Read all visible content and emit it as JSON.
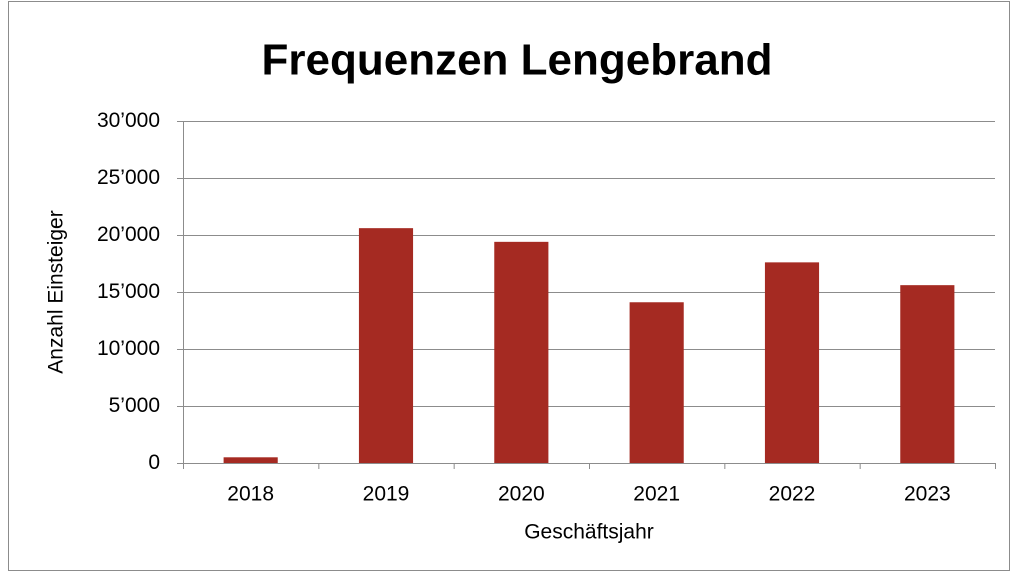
{
  "chart_data": {
    "type": "bar",
    "title": "Frequenzen Lengebrand",
    "x_label": "Geschäftsjahr",
    "y_label": "Anzahl Einsteiger",
    "categories": [
      "2018",
      "2019",
      "2020",
      "2021",
      "2022",
      "2023"
    ],
    "values": [
      500,
      20600,
      19400,
      14100,
      17600,
      15600
    ],
    "color": "#a52a22",
    "ylim": [
      0,
      30000
    ],
    "yticks": [
      0,
      {
        "value": 5000,
        "label": "5’000"
      },
      {
        "value": 10000,
        "label": "10’000"
      },
      {
        "value": 15000,
        "label": "15’000"
      },
      {
        "value": 20000,
        "label": "20’000"
      },
      {
        "value": 25000,
        "label": "25’000"
      },
      {
        "value": 30000,
        "label": "30’000"
      }
    ],
    "grid": true
  }
}
